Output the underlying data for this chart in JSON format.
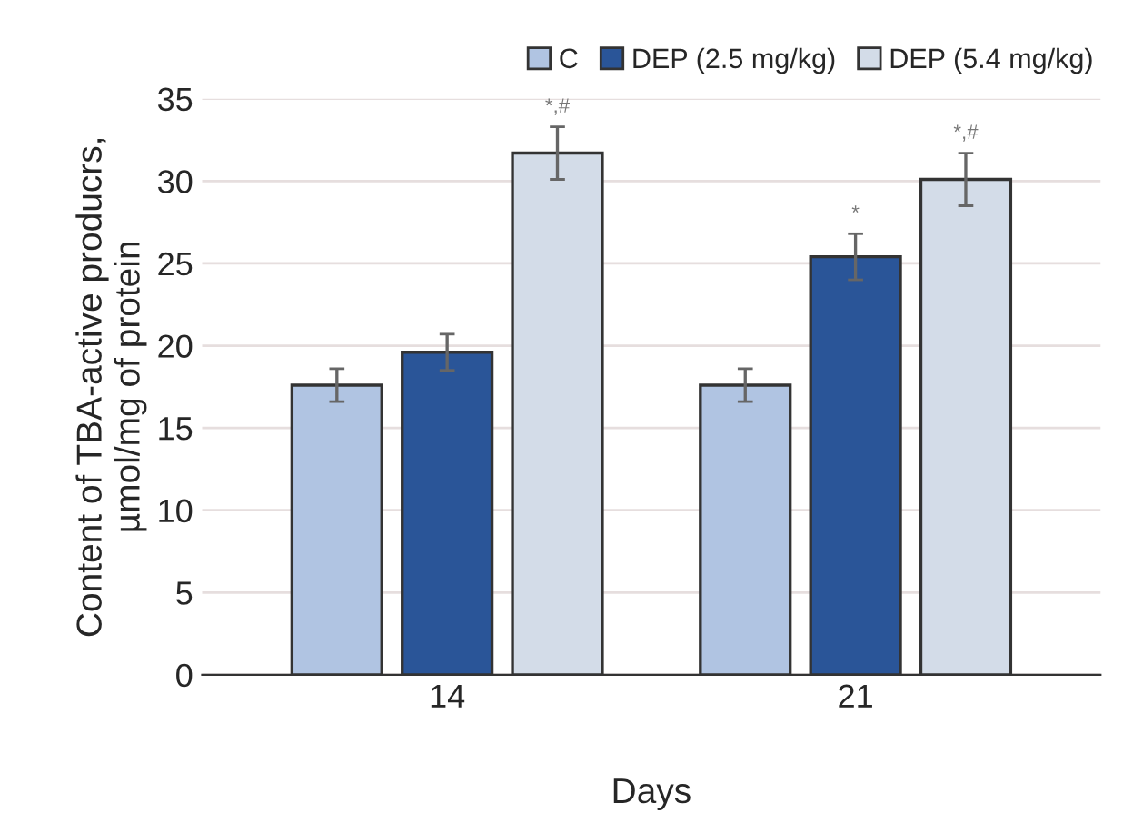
{
  "chart_data": {
    "type": "bar",
    "xlabel": "Days",
    "ylabel": "Content of TBA-active producrs,\nµmol/mg of protein",
    "categories": [
      "14",
      "21"
    ],
    "series": [
      {
        "name": "C",
        "color": "#b0c4e2",
        "values": [
          17.6,
          17.6
        ],
        "errors": [
          1.0,
          1.0
        ]
      },
      {
        "name": "DEP (2.5 mg/kg)",
        "color": "#2a5598",
        "values": [
          19.6,
          25.4
        ],
        "errors": [
          1.1,
          1.4
        ]
      },
      {
        "name": "DEP (5.4 mg/kg)",
        "color": "#d3dce8",
        "values": [
          31.7,
          30.1
        ],
        "errors": [
          1.6,
          1.6
        ]
      }
    ],
    "annotations": [
      "*,#",
      "*",
      "*,#"
    ],
    "ylim": [
      0,
      35
    ],
    "yticks": [
      0,
      5,
      10,
      15,
      20,
      25,
      30,
      35
    ],
    "grid": "y",
    "legend": "top right"
  }
}
